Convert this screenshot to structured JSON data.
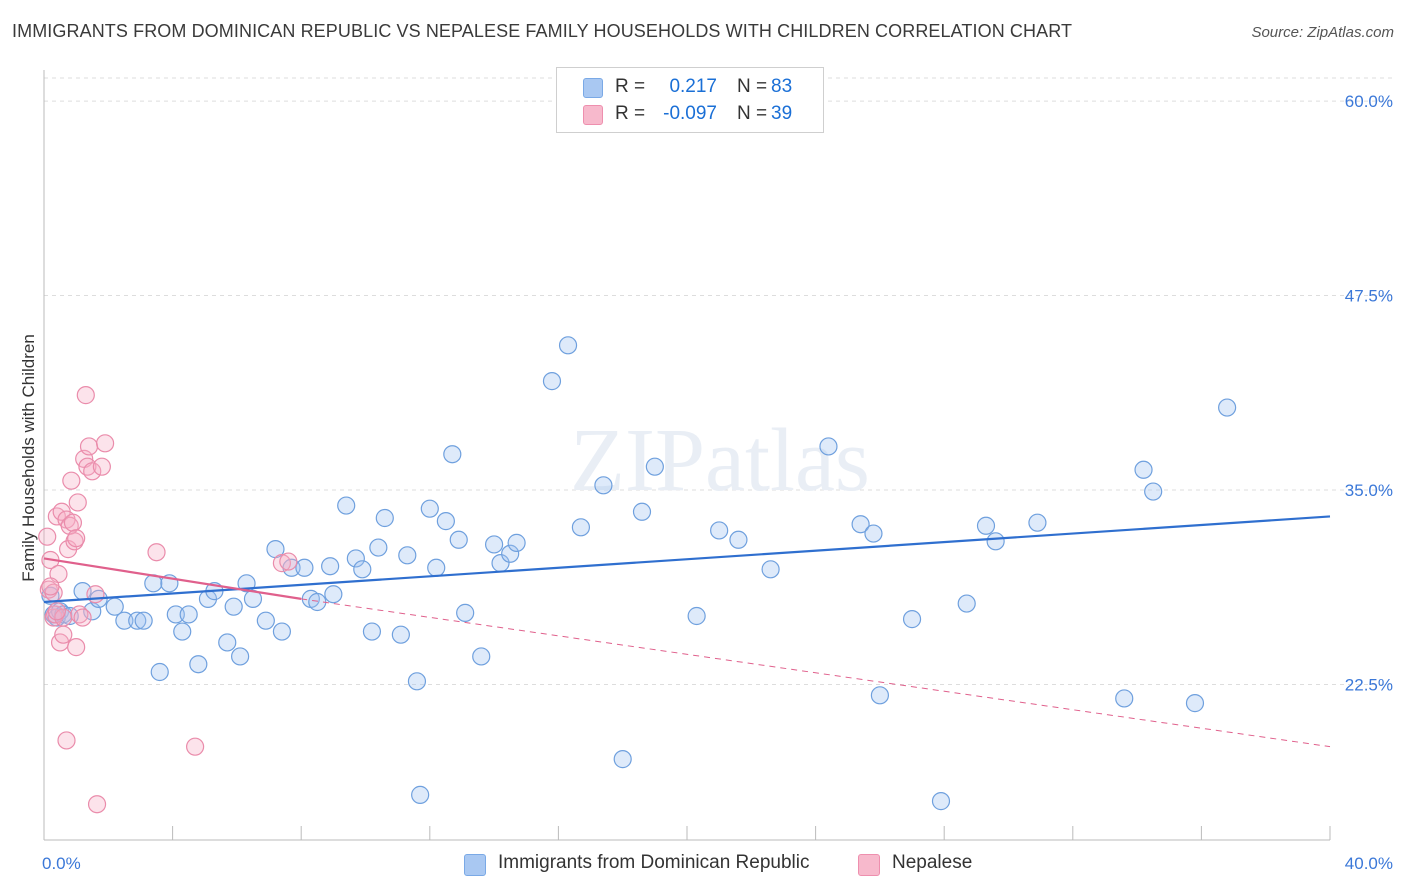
{
  "title": "IMMIGRANTS FROM DOMINICAN REPUBLIC VS NEPALESE FAMILY HOUSEHOLDS WITH CHILDREN CORRELATION CHART",
  "source": "Source: ZipAtlas.com",
  "watermark": "ZIPatlas",
  "legend": {
    "rows": [
      {
        "r_label": "R =",
        "r_value": "0.217",
        "n_label": "N =",
        "n_value": "83",
        "color": "#a9c8f2",
        "border": "#7aa9e6"
      },
      {
        "r_label": "R =",
        "r_value": "-0.097",
        "n_label": "N =",
        "n_value": "39",
        "color": "#f7b9cc",
        "border": "#ee8fae"
      }
    ]
  },
  "colors": {
    "blue_fill": "rgba(160,196,240,0.35)",
    "blue_stroke": "#6fa0de",
    "blue_line": "#2f6fcf",
    "pink_fill": "rgba(246,176,198,0.35)",
    "pink_stroke": "#ea8cab",
    "pink_line": "#e0608c",
    "tick": "#3b78d8",
    "grid": "#dddddd"
  },
  "chart_data": {
    "type": "scatter",
    "title": "IMMIGRANTS FROM DOMINICAN REPUBLIC VS NEPALESE FAMILY HOUSEHOLDS WITH CHILDREN CORRELATION CHART",
    "xlabel": "",
    "ylabel": "Family Households with Children",
    "xlim": [
      0,
      40
    ],
    "ylim": [
      12.5,
      62
    ],
    "x_tick_labels": [
      "0.0%",
      "40.0%"
    ],
    "y_ticks": [
      22.5,
      35.0,
      47.5,
      60.0
    ],
    "y_tick_labels": [
      "22.5%",
      "35.0%",
      "47.5%",
      "60.0%"
    ],
    "series": [
      {
        "name": "Immigrants from Dominican Republic",
        "points": [
          [
            0.2,
            28.2
          ],
          [
            0.3,
            27.0
          ],
          [
            0.4,
            26.8
          ],
          [
            0.5,
            27.2
          ],
          [
            0.6,
            27.0
          ],
          [
            0.8,
            26.9
          ],
          [
            1.2,
            28.5
          ],
          [
            1.5,
            27.2
          ],
          [
            1.7,
            28.0
          ],
          [
            2.2,
            27.5
          ],
          [
            2.5,
            26.6
          ],
          [
            2.9,
            26.6
          ],
          [
            3.1,
            26.6
          ],
          [
            3.4,
            29.0
          ],
          [
            3.6,
            23.3
          ],
          [
            3.9,
            29.0
          ],
          [
            4.1,
            27.0
          ],
          [
            4.3,
            25.9
          ],
          [
            4.5,
            27.0
          ],
          [
            4.8,
            23.8
          ],
          [
            5.1,
            28.0
          ],
          [
            5.3,
            28.5
          ],
          [
            5.7,
            25.2
          ],
          [
            5.9,
            27.5
          ],
          [
            6.1,
            24.3
          ],
          [
            6.3,
            29.0
          ],
          [
            6.5,
            28.0
          ],
          [
            6.9,
            26.6
          ],
          [
            7.2,
            31.2
          ],
          [
            7.4,
            25.9
          ],
          [
            7.7,
            30.0
          ],
          [
            8.1,
            30.0
          ],
          [
            8.3,
            28.0
          ],
          [
            8.5,
            27.8
          ],
          [
            8.9,
            30.1
          ],
          [
            9.0,
            28.3
          ],
          [
            9.4,
            34.0
          ],
          [
            9.7,
            30.6
          ],
          [
            9.9,
            29.9
          ],
          [
            10.2,
            25.9
          ],
          [
            10.4,
            31.3
          ],
          [
            10.6,
            33.2
          ],
          [
            11.1,
            25.7
          ],
          [
            11.3,
            30.8
          ],
          [
            11.6,
            22.7
          ],
          [
            11.7,
            15.4
          ],
          [
            12.0,
            33.8
          ],
          [
            12.2,
            30.0
          ],
          [
            12.5,
            33.0
          ],
          [
            12.7,
            37.3
          ],
          [
            12.9,
            31.8
          ],
          [
            13.1,
            27.1
          ],
          [
            13.6,
            24.3
          ],
          [
            14.0,
            31.5
          ],
          [
            14.2,
            30.3
          ],
          [
            14.5,
            30.9
          ],
          [
            14.7,
            31.6
          ],
          [
            15.8,
            42.0
          ],
          [
            16.3,
            44.3
          ],
          [
            16.7,
            32.6
          ],
          [
            17.4,
            35.3
          ],
          [
            17.6,
            59.9
          ],
          [
            18.0,
            17.7
          ],
          [
            18.6,
            33.6
          ],
          [
            19.0,
            36.5
          ],
          [
            20.3,
            26.9
          ],
          [
            21.0,
            32.4
          ],
          [
            21.6,
            31.8
          ],
          [
            22.6,
            29.9
          ],
          [
            24.4,
            37.8
          ],
          [
            25.4,
            32.8
          ],
          [
            25.8,
            32.2
          ],
          [
            26.0,
            21.8
          ],
          [
            27.0,
            26.7
          ],
          [
            27.9,
            15.0
          ],
          [
            28.7,
            27.7
          ],
          [
            29.3,
            32.7
          ],
          [
            29.6,
            31.7
          ],
          [
            30.9,
            32.9
          ],
          [
            33.6,
            21.6
          ],
          [
            34.2,
            36.3
          ],
          [
            34.5,
            34.9
          ],
          [
            35.8,
            21.3
          ],
          [
            36.8,
            40.3
          ]
        ],
        "trend": [
          [
            0.0,
            27.8
          ],
          [
            40.0,
            33.3
          ]
        ]
      },
      {
        "name": "Nepalese",
        "points": [
          [
            0.1,
            32.0
          ],
          [
            0.15,
            28.6
          ],
          [
            0.2,
            30.5
          ],
          [
            0.3,
            28.4
          ],
          [
            0.3,
            26.8
          ],
          [
            0.35,
            27.0
          ],
          [
            0.4,
            33.3
          ],
          [
            0.45,
            29.6
          ],
          [
            0.5,
            25.2
          ],
          [
            0.55,
            33.6
          ],
          [
            0.6,
            26.8
          ],
          [
            0.6,
            25.7
          ],
          [
            0.7,
            18.9
          ],
          [
            0.7,
            33.1
          ],
          [
            0.75,
            31.2
          ],
          [
            0.8,
            32.7
          ],
          [
            0.85,
            35.6
          ],
          [
            0.9,
            32.9
          ],
          [
            0.95,
            31.7
          ],
          [
            1.0,
            31.9
          ],
          [
            1.0,
            24.9
          ],
          [
            1.05,
            34.2
          ],
          [
            1.1,
            27.0
          ],
          [
            1.2,
            26.8
          ],
          [
            1.25,
            37.0
          ],
          [
            1.3,
            41.1
          ],
          [
            1.35,
            36.5
          ],
          [
            1.4,
            37.8
          ],
          [
            1.5,
            36.2
          ],
          [
            1.6,
            28.3
          ],
          [
            1.65,
            14.8
          ],
          [
            1.8,
            36.5
          ],
          [
            1.9,
            38.0
          ],
          [
            3.5,
            31.0
          ],
          [
            4.7,
            18.5
          ],
          [
            7.4,
            30.3
          ],
          [
            7.6,
            30.4
          ],
          [
            0.2,
            28.8
          ],
          [
            0.4,
            27.2
          ]
        ],
        "trend_solid": [
          [
            0.0,
            30.6
          ],
          [
            8.0,
            28.0
          ]
        ],
        "trend_dashed": [
          [
            8.0,
            28.0
          ],
          [
            40.0,
            18.5
          ]
        ]
      }
    ]
  },
  "bottom_legend": [
    {
      "label": "Immigrants from Dominican Republic",
      "color": "#a9c8f2",
      "border": "#7aa9e6"
    },
    {
      "label": "Nepalese",
      "color": "#f7b9cc",
      "border": "#ee8fae"
    }
  ]
}
